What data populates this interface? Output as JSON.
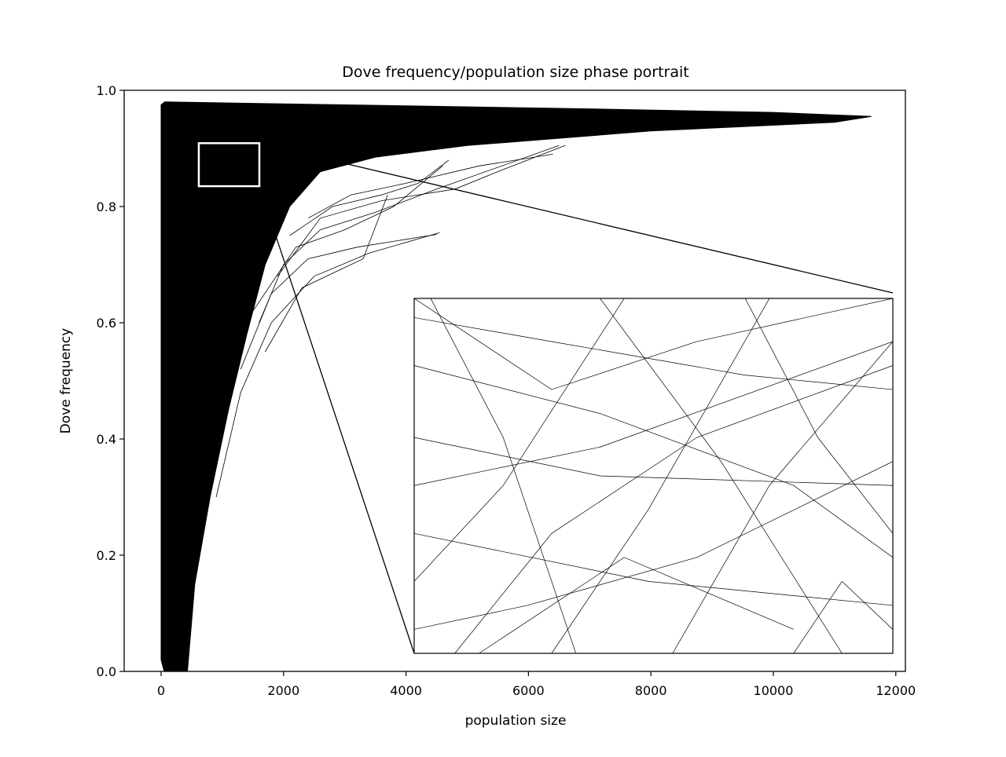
{
  "chart_data": {
    "type": "line",
    "title": "Dove frequency/population size phase portrait",
    "xlabel": "population size",
    "ylabel": "Dove frequency",
    "color": "#000000",
    "xlim": [
      -603,
      12157
    ],
    "ylim": [
      0,
      1
    ],
    "xticks": [
      0,
      2000,
      4000,
      6000,
      8000,
      10000,
      12000
    ],
    "yticks": [
      {
        "value": 0,
        "label": "0.0"
      },
      {
        "value": 0.2,
        "label": "0.2"
      },
      {
        "value": 0.4,
        "label": "0.4"
      },
      {
        "value": 0.6,
        "label": "0.6"
      },
      {
        "value": 0.8,
        "label": "0.8"
      },
      {
        "value": 1,
        "label": "1.0"
      }
    ],
    "fill": {
      "x": [
        0,
        0,
        60,
        3000,
        7000,
        10000,
        11600,
        11000,
        8000,
        5000,
        3500,
        2600,
        2100,
        1700,
        1400,
        1100,
        800,
        550,
        430,
        300,
        50,
        0
      ],
      "y": [
        0.02,
        0.975,
        0.98,
        0.975,
        0.968,
        0.962,
        0.955,
        0.945,
        0.93,
        0.905,
        0.885,
        0.86,
        0.8,
        0.7,
        0.58,
        0.45,
        0.3,
        0.15,
        0.0,
        0.0,
        0.0,
        0.02
      ]
    },
    "series": [
      {
        "x": [
          900,
          1300,
          1800,
          2500,
          3400,
          4550
        ],
        "y": [
          0.3,
          0.48,
          0.6,
          0.68,
          0.72,
          0.755
        ]
      },
      {
        "x": [
          1300,
          1800,
          2400,
          3200,
          4500
        ],
        "y": [
          0.52,
          0.65,
          0.71,
          0.73,
          0.752
        ]
      },
      {
        "x": [
          1600,
          2000,
          2600,
          3500,
          4500,
          6500
        ],
        "y": [
          0.6,
          0.7,
          0.76,
          0.79,
          0.83,
          0.905
        ]
      },
      {
        "x": [
          1900,
          2600,
          3600,
          4800,
          5500,
          6600
        ],
        "y": [
          0.68,
          0.78,
          0.81,
          0.83,
          0.86,
          0.905
        ]
      },
      {
        "x": [
          2100,
          2800,
          3600,
          4200,
          4700
        ],
        "y": [
          0.75,
          0.8,
          0.82,
          0.84,
          0.88
        ]
      },
      {
        "x": [
          1700,
          2300,
          2900,
          3300,
          3700
        ],
        "y": [
          0.55,
          0.66,
          0.69,
          0.71,
          0.82
        ]
      },
      {
        "x": [
          1500,
          2200,
          3000,
          3800,
          4600
        ],
        "y": [
          0.62,
          0.73,
          0.76,
          0.8,
          0.87
        ]
      },
      {
        "x": [
          2400,
          3100,
          4000,
          5200,
          6400
        ],
        "y": [
          0.78,
          0.82,
          0.84,
          0.87,
          0.89
        ]
      }
    ],
    "inset": {
      "xlim": [
        616,
        1605
      ],
      "ylim": [
        0.835,
        0.909
      ],
      "series": [
        {
          "x": [
            616,
            900,
            1300,
            1605
          ],
          "y": [
            0.905,
            0.9,
            0.893,
            0.89
          ]
        },
        {
          "x": [
            616,
            1000,
            1605
          ],
          "y": [
            0.88,
            0.872,
            0.87
          ]
        },
        {
          "x": [
            616,
            1100,
            1605
          ],
          "y": [
            0.86,
            0.85,
            0.845
          ]
        },
        {
          "x": [
            700,
            900,
            1200,
            1605
          ],
          "y": [
            0.835,
            0.86,
            0.88,
            0.895
          ]
        },
        {
          "x": [
            616,
            800,
            1050
          ],
          "y": [
            0.85,
            0.87,
            0.909
          ]
        },
        {
          "x": [
            900,
            1100,
            1350
          ],
          "y": [
            0.835,
            0.865,
            0.909
          ]
        },
        {
          "x": [
            1150,
            1350,
            1605
          ],
          "y": [
            0.835,
            0.87,
            0.9
          ]
        },
        {
          "x": [
            616,
            1000,
            1400,
            1605
          ],
          "y": [
            0.895,
            0.885,
            0.87,
            0.855
          ]
        },
        {
          "x": [
            650,
            800,
            950
          ],
          "y": [
            0.909,
            0.88,
            0.835
          ]
        },
        {
          "x": [
            1000,
            1250,
            1500
          ],
          "y": [
            0.909,
            0.875,
            0.835
          ]
        },
        {
          "x": [
            1300,
            1450,
            1605
          ],
          "y": [
            0.909,
            0.88,
            0.86
          ]
        },
        {
          "x": [
            616,
            850,
            1200,
            1605
          ],
          "y": [
            0.84,
            0.845,
            0.855,
            0.875
          ]
        },
        {
          "x": [
            616,
            1000,
            1605
          ],
          "y": [
            0.87,
            0.878,
            0.9
          ]
        },
        {
          "x": [
            750,
            1050,
            1400
          ],
          "y": [
            0.835,
            0.855,
            0.84
          ]
        },
        {
          "x": [
            616,
            900,
            1200,
            1605
          ],
          "y": [
            0.909,
            0.89,
            0.9,
            0.909
          ]
        },
        {
          "x": [
            1400,
            1500,
            1605
          ],
          "y": [
            0.835,
            0.85,
            0.84
          ]
        }
      ]
    }
  }
}
